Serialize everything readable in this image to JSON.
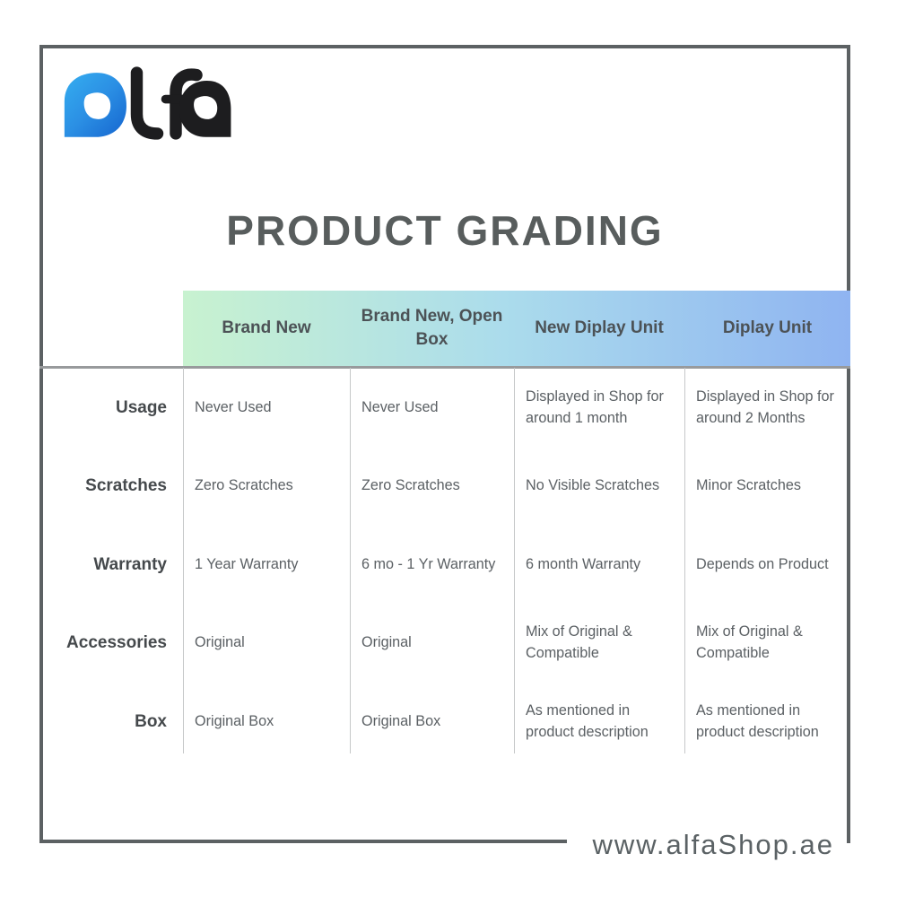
{
  "brand": {
    "name": "alfa",
    "logo_blue_letter": "a",
    "logo_dark_letters": "lfa"
  },
  "title": "PRODUCT GRADING",
  "table": {
    "columns": [
      "Brand New",
      "Brand New, Open Box",
      "New Diplay Unit",
      "Diplay Unit"
    ],
    "row_headers": [
      "Usage",
      "Scratches",
      "Warranty",
      "Accessories",
      "Box"
    ],
    "rows": [
      {
        "label": "Usage",
        "values": [
          "Never Used",
          "Never Used",
          "Displayed in Shop for around 1 month",
          "Displayed in Shop for around 2 Months"
        ]
      },
      {
        "label": "Scratches",
        "values": [
          "Zero Scratches",
          "Zero Scratches",
          "No Visible Scratches",
          "Minor Scratches"
        ]
      },
      {
        "label": "Warranty",
        "values": [
          "1 Year Warranty",
          "6 mo - 1 Yr Warranty",
          "6 month Warranty",
          "Depends on Product"
        ]
      },
      {
        "label": "Accessories",
        "values": [
          "Original",
          "Original",
          "Mix of Original & Compatible",
          "Mix of Original & Compatible"
        ]
      },
      {
        "label": "Box",
        "values": [
          "Original Box",
          "Original Box",
          "As mentioned in product description",
          "As mentioned in product description"
        ]
      }
    ]
  },
  "footer": {
    "website": "www.alfaShop.ae"
  },
  "colors": {
    "frame_border": "#5c6163",
    "title_text": "#585d5d",
    "header_gradient_start": "#c8f2d0",
    "header_gradient_mid": "#abdcec",
    "header_gradient_end": "#8fb4f1",
    "header_text": "#4c5256",
    "row_label_text": "#45494c",
    "cell_text": "#5b6064",
    "divider": "#c6c8c9",
    "logo_blue_dark": "#1565cf",
    "logo_blue_light": "#35aef0",
    "logo_black": "#1d1d1f"
  }
}
